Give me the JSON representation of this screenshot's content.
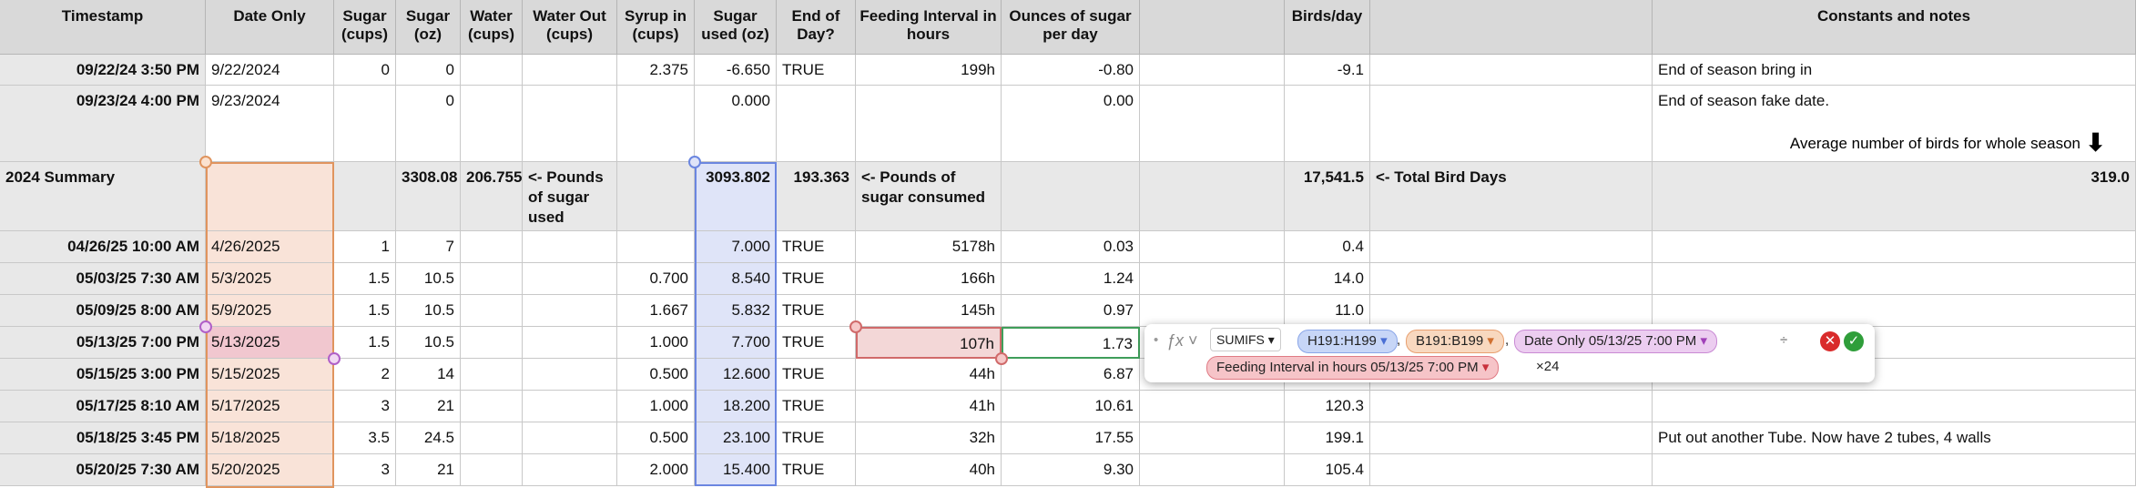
{
  "table": {
    "headers": [
      "Timestamp",
      "Date Only",
      "Sugar (cups)",
      "Sugar (oz)",
      "Water (cups)",
      "Water Out (cups)",
      "Syrup in (cups)",
      "Sugar used (oz)",
      "End of Day?",
      "Feeding Interval in hours",
      "Ounces of sugar per day",
      null,
      "Birds/day",
      null,
      "Constants and notes"
    ],
    "rows": [
      [
        "09/22/24 3:50 PM",
        "9/22/2024",
        "0",
        "0",
        null,
        null,
        "2.375",
        "-6.650",
        "TRUE",
        "199h",
        "-0.80",
        null,
        "-9.1",
        null,
        "End of season bring in"
      ],
      [
        "09/23/24 4:00 PM",
        "9/23/2024",
        null,
        "0",
        null,
        null,
        null,
        "0.000",
        null,
        null,
        "0.00",
        null,
        null,
        null,
        "End  of season fake date."
      ],
      [
        "2024 Summary",
        null,
        null,
        "3308.08",
        "206.755",
        "<- Pounds of sugar used",
        null,
        "3093.802",
        "193.363",
        "<- Pounds of sugar consumed",
        null,
        null,
        "17,541.5",
        "<- Total Bird Days",
        "319.0"
      ],
      [
        "04/26/25 10:00 AM",
        "4/26/2025",
        "1",
        "7",
        null,
        null,
        null,
        "7.000",
        "TRUE",
        "5178h",
        "0.03",
        null,
        "0.4",
        null,
        null
      ],
      [
        "05/03/25 7:30 AM",
        "5/3/2025",
        "1.5",
        "10.5",
        null,
        null,
        "0.700",
        "8.540",
        "TRUE",
        "166h",
        "1.24",
        null,
        "14.0",
        null,
        null
      ],
      [
        "05/09/25 8:00 AM",
        "5/9/2025",
        "1.5",
        "10.5",
        null,
        null,
        "1.667",
        "5.832",
        "TRUE",
        "145h",
        "0.97",
        null,
        "11.0",
        null,
        null
      ],
      [
        "05/13/25 7:00 PM",
        "5/13/2025",
        "1.5",
        "10.5",
        null,
        null,
        "1.000",
        "7.700",
        "TRUE",
        "107h",
        "1.73",
        null,
        null,
        null,
        null
      ],
      [
        "05/15/25 3:00 PM",
        "5/15/2025",
        "2",
        "14",
        null,
        null,
        "0.500",
        "12.600",
        "TRUE",
        "44h",
        "6.87",
        null,
        null,
        null,
        null
      ],
      [
        "05/17/25 8:10 AM",
        "5/17/2025",
        "3",
        "21",
        null,
        null,
        "1.000",
        "18.200",
        "TRUE",
        "41h",
        "10.61",
        null,
        "120.3",
        null,
        null
      ],
      [
        "05/18/25 3:45 PM",
        "5/18/2025",
        "3.5",
        "24.5",
        null,
        null,
        "0.500",
        "23.100",
        "TRUE",
        "32h",
        "17.55",
        null,
        "199.1",
        null,
        "Put out another Tube. Now have 2 tubes, 4 walls"
      ],
      [
        "05/20/25 7:30 AM",
        "5/20/2025",
        "3",
        "21",
        null,
        null,
        "2.000",
        "15.400",
        "TRUE",
        "40h",
        "9.30",
        null,
        "105.4",
        null,
        null
      ]
    ],
    "season_average_label": "Average number of birds for whole season"
  },
  "formula": {
    "function": "SUMIFS",
    "arguments": [
      "H191:H199",
      "B191:B199",
      "Date Only 05/13/25 7:00 PM",
      "Feeding Interval in hours 05/13/25 7:00 PM"
    ],
    "separator": ",",
    "divide": "÷",
    "multiply": "×24"
  }
}
